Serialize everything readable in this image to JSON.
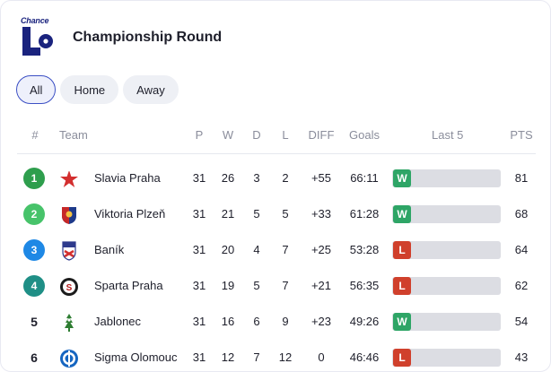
{
  "header": {
    "brand": "Chance",
    "title": "Championship Round"
  },
  "filters": [
    {
      "label": "All",
      "active": true
    },
    {
      "label": "Home",
      "active": false
    },
    {
      "label": "Away",
      "active": false
    }
  ],
  "columns": {
    "rank": "#",
    "team": "Team",
    "played": "P",
    "won": "W",
    "drawn": "D",
    "lost": "L",
    "diff": "DIFF",
    "goals": "Goals",
    "last5": "Last 5",
    "points": "PTS"
  },
  "colors": {
    "rank_green": "#2e9e4d",
    "rank_lightgreen": "#47c36a",
    "rank_blue": "#1e88e5",
    "rank_teal": "#1f8f86",
    "form_win": "#2ea566",
    "form_loss": "#d0402c"
  },
  "rows": [
    {
      "rank": "1",
      "rank_style": "badge",
      "rank_color": "#2e9e4d",
      "team": "Slavia Praha",
      "crest": "slavia-star-icon",
      "p": "31",
      "w": "26",
      "d": "3",
      "l": "2",
      "diff": "+55",
      "goals": "66:11",
      "form": "W",
      "pts": "81"
    },
    {
      "rank": "2",
      "rank_style": "badge",
      "rank_color": "#47c36a",
      "team": "Viktoria Plzeň",
      "crest": "plzen-shield-icon",
      "p": "31",
      "w": "21",
      "d": "5",
      "l": "5",
      "diff": "+33",
      "goals": "61:28",
      "form": "W",
      "pts": "68"
    },
    {
      "rank": "3",
      "rank_style": "badge",
      "rank_color": "#1e88e5",
      "team": "Baník",
      "crest": "banik-shield-icon",
      "p": "31",
      "w": "20",
      "d": "4",
      "l": "7",
      "diff": "+25",
      "goals": "53:28",
      "form": "L",
      "pts": "64"
    },
    {
      "rank": "4",
      "rank_style": "badge",
      "rank_color": "#1f8f86",
      "team": "Sparta Praha",
      "crest": "sparta-crest-icon",
      "p": "31",
      "w": "19",
      "d": "5",
      "l": "7",
      "diff": "+21",
      "goals": "56:35",
      "form": "L",
      "pts": "62"
    },
    {
      "rank": "5",
      "rank_style": "plain",
      "rank_color": "",
      "team": "Jablonec",
      "crest": "jablonec-crest-icon",
      "p": "31",
      "w": "16",
      "d": "6",
      "l": "9",
      "diff": "+23",
      "goals": "49:26",
      "form": "W",
      "pts": "54"
    },
    {
      "rank": "6",
      "rank_style": "plain",
      "rank_color": "",
      "team": "Sigma Olomouc",
      "crest": "sigma-crest-icon",
      "p": "31",
      "w": "12",
      "d": "7",
      "l": "12",
      "diff": "0",
      "goals": "46:46",
      "form": "L",
      "pts": "43"
    }
  ]
}
